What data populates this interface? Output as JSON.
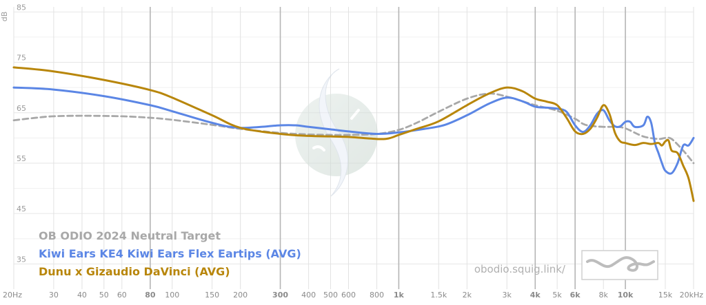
{
  "chart_data": {
    "type": "line",
    "xscale": "log",
    "xlim": [
      20,
      20000
    ],
    "ylim": [
      30,
      86
    ],
    "ylabel": "dB",
    "y_ticks": [
      35,
      45,
      55,
      65,
      75,
      85
    ],
    "y_ticks_minor": [
      40,
      50,
      60,
      70,
      80
    ],
    "x_ticks": [
      {
        "v": 20,
        "label": "20Hz",
        "strong": false
      },
      {
        "v": 30,
        "label": "30",
        "strong": false
      },
      {
        "v": 40,
        "label": "40",
        "strong": false
      },
      {
        "v": 50,
        "label": "50",
        "strong": false
      },
      {
        "v": 60,
        "label": "60",
        "strong": false
      },
      {
        "v": 80,
        "label": "80",
        "strong": true
      },
      {
        "v": 100,
        "label": "100",
        "strong": false
      },
      {
        "v": 150,
        "label": "150",
        "strong": false
      },
      {
        "v": 200,
        "label": "200",
        "strong": false
      },
      {
        "v": 300,
        "label": "300",
        "strong": true
      },
      {
        "v": 400,
        "label": "400",
        "strong": false
      },
      {
        "v": 500,
        "label": "500",
        "strong": false
      },
      {
        "v": 600,
        "label": "600",
        "strong": false
      },
      {
        "v": 800,
        "label": "800",
        "strong": false
      },
      {
        "v": 1000,
        "label": "1k",
        "strong": true
      },
      {
        "v": 1500,
        "label": "1.5k",
        "strong": false
      },
      {
        "v": 2000,
        "label": "2k",
        "strong": false
      },
      {
        "v": 3000,
        "label": "3k",
        "strong": false
      },
      {
        "v": 4000,
        "label": "4k",
        "strong": true
      },
      {
        "v": 5000,
        "label": "5k",
        "strong": false
      },
      {
        "v": 6000,
        "label": "6k",
        "strong": true
      },
      {
        "v": 8000,
        "label": "8k",
        "strong": false
      },
      {
        "v": 10000,
        "label": "10k",
        "strong": true
      },
      {
        "v": 15000,
        "label": "15k",
        "strong": false
      },
      {
        "v": 20000,
        "label": "20kHz",
        "strong": false
      }
    ],
    "series": [
      {
        "name": "OB ODIO 2024 Neutral Target",
        "color": "#a8a8a8",
        "dashed": true,
        "points": [
          [
            20,
            63.5
          ],
          [
            25,
            64
          ],
          [
            30,
            64.3
          ],
          [
            40,
            64.4
          ],
          [
            60,
            64.3
          ],
          [
            80,
            64
          ],
          [
            100,
            63.6
          ],
          [
            150,
            62.6
          ],
          [
            200,
            61.8
          ],
          [
            300,
            61
          ],
          [
            400,
            60.7
          ],
          [
            500,
            60.6
          ],
          [
            600,
            60.6
          ],
          [
            800,
            60.8
          ],
          [
            1000,
            61.6
          ],
          [
            1200,
            63
          ],
          [
            1500,
            65.2
          ],
          [
            2000,
            67.8
          ],
          [
            2500,
            68.8
          ],
          [
            3000,
            68.2
          ],
          [
            3500,
            67.3
          ],
          [
            4000,
            66.5
          ],
          [
            5000,
            65.4
          ],
          [
            6000,
            63.8
          ],
          [
            6500,
            62.8
          ],
          [
            7000,
            62.4
          ],
          [
            8000,
            62.2
          ],
          [
            9000,
            62.2
          ],
          [
            10000,
            61.9
          ],
          [
            12000,
            60.3
          ],
          [
            14000,
            59.8
          ],
          [
            15000,
            60
          ],
          [
            16000,
            59.8
          ],
          [
            18000,
            57.5
          ],
          [
            20000,
            55
          ]
        ]
      },
      {
        "name": "Kiwi Ears KE4 Kiwi Ears Flex Eartips (AVG)",
        "color": "#5b86e5",
        "dashed": false,
        "points": [
          [
            20,
            70
          ],
          [
            30,
            69.6
          ],
          [
            50,
            68.3
          ],
          [
            80,
            66.5
          ],
          [
            100,
            65.3
          ],
          [
            150,
            63
          ],
          [
            200,
            62
          ],
          [
            300,
            62.5
          ],
          [
            350,
            62.5
          ],
          [
            400,
            62.2
          ],
          [
            500,
            61.7
          ],
          [
            600,
            61.3
          ],
          [
            800,
            60.8
          ],
          [
            1000,
            61.1
          ],
          [
            1300,
            61.8
          ],
          [
            1600,
            62.6
          ],
          [
            2000,
            64.5
          ],
          [
            2500,
            66.8
          ],
          [
            3000,
            68
          ],
          [
            3500,
            67.3
          ],
          [
            4000,
            66.2
          ],
          [
            4500,
            66
          ],
          [
            5000,
            65.8
          ],
          [
            5500,
            65.2
          ],
          [
            6000,
            62.5
          ],
          [
            6500,
            61.2
          ],
          [
            7000,
            62.5
          ],
          [
            7500,
            64.8
          ],
          [
            8000,
            65.5
          ],
          [
            8500,
            63.5
          ],
          [
            9000,
            62.3
          ],
          [
            9500,
            62.3
          ],
          [
            10000,
            63.2
          ],
          [
            10500,
            63.2
          ],
          [
            11000,
            62.2
          ],
          [
            12000,
            62.5
          ],
          [
            12500,
            64.2
          ],
          [
            13000,
            63
          ],
          [
            13500,
            59
          ],
          [
            14000,
            57
          ],
          [
            14500,
            55
          ],
          [
            15000,
            53.5
          ],
          [
            16000,
            53
          ],
          [
            17000,
            55
          ],
          [
            18000,
            58.5
          ],
          [
            19000,
            58.5
          ],
          [
            20000,
            60
          ]
        ]
      },
      {
        "name": "Dunu x Gizaudio DaVinci (AVG)",
        "color": "#b8860b",
        "dashed": false,
        "points": [
          [
            20,
            74
          ],
          [
            30,
            73.2
          ],
          [
            50,
            71.5
          ],
          [
            80,
            69.5
          ],
          [
            100,
            68
          ],
          [
            150,
            64.5
          ],
          [
            200,
            62
          ],
          [
            300,
            60.8
          ],
          [
            400,
            60.4
          ],
          [
            500,
            60.3
          ],
          [
            600,
            60.2
          ],
          [
            800,
            59.8
          ],
          [
            900,
            59.9
          ],
          [
            1000,
            60.6
          ],
          [
            1200,
            61.8
          ],
          [
            1500,
            63.3
          ],
          [
            2000,
            66.5
          ],
          [
            2500,
            68.8
          ],
          [
            3000,
            70
          ],
          [
            3500,
            69.3
          ],
          [
            4000,
            67.8
          ],
          [
            4500,
            67.2
          ],
          [
            5000,
            66.5
          ],
          [
            5500,
            64
          ],
          [
            6000,
            61.3
          ],
          [
            6500,
            60.8
          ],
          [
            7000,
            61.8
          ],
          [
            7500,
            64
          ],
          [
            8000,
            66.5
          ],
          [
            8500,
            64.8
          ],
          [
            9000,
            61
          ],
          [
            9500,
            59.3
          ],
          [
            10000,
            59
          ],
          [
            11000,
            58.6
          ],
          [
            12000,
            59
          ],
          [
            13000,
            58.8
          ],
          [
            14000,
            59
          ],
          [
            14500,
            58.5
          ],
          [
            15000,
            59.3
          ],
          [
            15500,
            59.5
          ],
          [
            16000,
            57.5
          ],
          [
            17000,
            57
          ],
          [
            18000,
            54.5
          ],
          [
            19000,
            52
          ],
          [
            20000,
            47.5
          ]
        ]
      }
    ],
    "watermark": "obodio.squig.link/"
  }
}
